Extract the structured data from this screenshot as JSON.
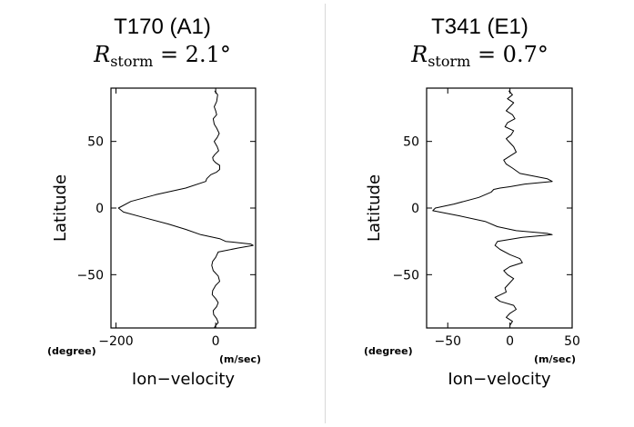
{
  "chart_data": [
    {
      "type": "line",
      "title": "T170  (A1)",
      "subtitle_symbol": "R",
      "subtitle_subscript": "storm",
      "subtitle_rest": " = 2.1°",
      "xlabel": "Ion−velocity",
      "ylabel": "Latitude",
      "x_unit_label": "(m/sec)",
      "y_unit_label": "(degree)",
      "xlim": [
        -210,
        80
      ],
      "ylim": [
        -90,
        90
      ],
      "xticks": [
        -200,
        0
      ],
      "xtick_labels": [
        "−200",
        "0"
      ],
      "yticks": [
        -50,
        0,
        50
      ],
      "ytick_labels": [
        "−50",
        "0",
        "50"
      ],
      "grid": false,
      "series": [
        {
          "x": [
            -2,
            4,
            2,
            -3,
            0,
            2,
            -5,
            -3,
            2,
            7,
            3,
            -3,
            3,
            6,
            -2,
            -6,
            -5,
            0,
            8,
            8,
            2,
            -10,
            -18,
            -20,
            -60,
            -120,
            -170,
            -195,
            -185,
            -145,
            -95,
            -60,
            -30,
            8,
            20,
            45,
            70,
            75,
            45,
            5,
            0,
            -6,
            -8,
            -5,
            5,
            8,
            0,
            -6,
            -7,
            0,
            5,
            2,
            -5,
            -4,
            2,
            5,
            0,
            -3
          ],
          "y": [
            88,
            85,
            80,
            76,
            73,
            70,
            67,
            63,
            60,
            56,
            53,
            50,
            46,
            43,
            40,
            38,
            36,
            34,
            32,
            29,
            27,
            25,
            22,
            20,
            15,
            10,
            5,
            0,
            -3,
            -7,
            -12,
            -16,
            -20,
            -23,
            -25,
            -26,
            -27,
            -28,
            -30,
            -33,
            -37,
            -40,
            -43,
            -47,
            -51,
            -55,
            -58,
            -62,
            -65,
            -68,
            -71,
            -74,
            -77,
            -80,
            -83,
            -86,
            -88,
            -90
          ]
        }
      ]
    },
    {
      "type": "line",
      "title": "T341 (E1)",
      "subtitle_symbol": "R",
      "subtitle_subscript": "storm",
      "subtitle_rest": " = 0.7°",
      "xlabel": "Ion−velocity",
      "ylabel": "Latitude",
      "x_unit_label": "(m/sec)",
      "y_unit_label": "(degree)",
      "xlim": [
        -67,
        50
      ],
      "ylim": [
        -90,
        90
      ],
      "xticks": [
        -50,
        0,
        50
      ],
      "xtick_labels": [
        "−50",
        "0",
        "50"
      ],
      "yticks": [
        -50,
        0,
        50
      ],
      "ytick_labels": [
        "−50",
        "0",
        "50"
      ],
      "grid": false,
      "series": [
        {
          "x": [
            -1,
            2,
            -2,
            3,
            0,
            -3,
            2,
            4,
            -2,
            -4,
            3,
            1,
            -3,
            0,
            3,
            5,
            0,
            -5,
            -3,
            2,
            8,
            30,
            34,
            12,
            0,
            -8,
            -13,
            -15,
            -25,
            -45,
            -60,
            -62,
            -40,
            -20,
            -10,
            5,
            30,
            34,
            10,
            -10,
            -12,
            -8,
            0,
            8,
            10,
            0,
            -5,
            -2,
            3,
            0,
            -4,
            -3,
            -12,
            -8,
            3,
            5,
            0,
            -3,
            2,
            0
          ],
          "y": [
            88,
            85,
            82,
            79,
            76,
            73,
            70,
            67,
            64,
            61,
            58,
            55,
            52,
            49,
            46,
            42,
            39,
            36,
            33,
            30,
            26,
            22,
            20,
            18,
            16,
            15,
            14,
            12,
            8,
            3,
            0,
            -2,
            -6,
            -10,
            -14,
            -17,
            -19,
            -20,
            -22,
            -25,
            -28,
            -31,
            -35,
            -38,
            -41,
            -44,
            -47,
            -50,
            -53,
            -56,
            -60,
            -63,
            -67,
            -70,
            -73,
            -76,
            -79,
            -82,
            -85,
            -88
          ]
        }
      ]
    }
  ]
}
